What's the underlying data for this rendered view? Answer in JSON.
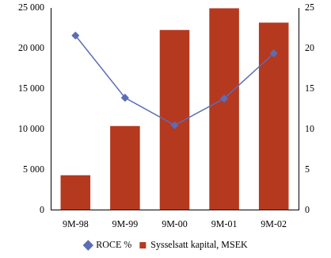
{
  "chart_data": {
    "type": "bar",
    "categories": [
      "9M-98",
      "9M-99",
      "9M-00",
      "9M-01",
      "9M-02"
    ],
    "series": [
      {
        "name": "Sysselsatt kapital, MSEK",
        "type": "bar",
        "color": "#b5391f",
        "values": [
          4300,
          10400,
          22300,
          25000,
          23200
        ]
      },
      {
        "name": "ROCE %",
        "type": "line",
        "color": "#5b6db5",
        "marker": "diamond",
        "axis": "y2",
        "values": [
          21.6,
          13.9,
          10.5,
          13.8,
          19.4
        ]
      }
    ],
    "ylim": [
      0,
      25000
    ],
    "yticks": [
      0,
      {
        "value": 5000,
        "label": "5 000"
      },
      {
        "value": 10000,
        "label": "10 000"
      },
      {
        "value": 15000,
        "label": "15 000"
      },
      {
        "value": 20000,
        "label": "20 000"
      },
      {
        "value": 25000,
        "label": "25 000"
      }
    ],
    "y2lim": [
      0,
      25
    ],
    "y2ticks": [
      0,
      5,
      10,
      15,
      20,
      25
    ],
    "grid": false,
    "legend": "bottom"
  }
}
